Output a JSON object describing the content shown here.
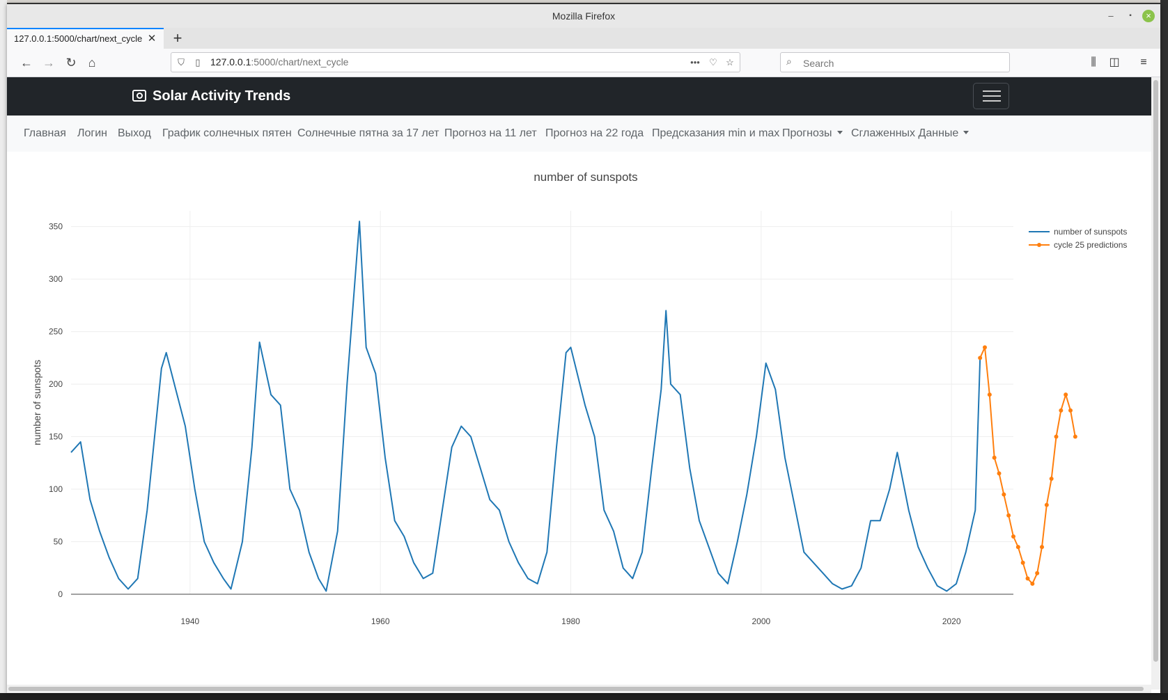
{
  "browser": {
    "window_title": "Mozilla Firefox",
    "tab_title": "127.0.0.1:5000/chart/next_cycle",
    "url_host": "127.0.0.1",
    "url_path": ":5000/chart/next_cycle",
    "search_placeholder": "Search"
  },
  "app": {
    "brand": "Solar Activity Trends",
    "menu": [
      {
        "label": "Главная"
      },
      {
        "label": "Логин"
      },
      {
        "label": "Выход"
      },
      {
        "label": "График солнечных пятен"
      },
      {
        "label": "Солнечные пятна за 17 лет"
      },
      {
        "label": "Прогноз на 11 лет"
      },
      {
        "label": "Прогноз на 22 года"
      },
      {
        "label": "Предсказания min и max"
      },
      {
        "label": "Прогнозы",
        "dropdown": true
      },
      {
        "label": "Сглаженных Данные",
        "dropdown": true
      }
    ]
  },
  "colors": {
    "navbar": "#212529",
    "series_history": "#1f77b4",
    "series_prediction": "#ff7f0e"
  },
  "chart_data": {
    "type": "line",
    "title": "number of sunspots",
    "xlabel": "",
    "ylabel": "number of sunspots",
    "xlim": [
      1927.5,
      2026.5
    ],
    "ylim": [
      0,
      365
    ],
    "xticks": [
      1940,
      1960,
      1980,
      2000,
      2020
    ],
    "yticks": [
      0,
      50,
      100,
      150,
      200,
      250,
      300,
      350
    ],
    "grid": true,
    "legend_position": "top-right",
    "series": [
      {
        "name": "number of sunspots",
        "color": "#1f77b4",
        "mode": "lines",
        "x": [
          1927.5,
          1928.5,
          1929.5,
          1930.5,
          1931.5,
          1932.5,
          1933.5,
          1934.5,
          1935.5,
          1936.5,
          1937.0,
          1937.5,
          1938.5,
          1939.5,
          1940.5,
          1941.5,
          1942.5,
          1943.5,
          1944.3,
          1945.5,
          1946.5,
          1947.3,
          1948.5,
          1949.5,
          1950.5,
          1951.5,
          1952.5,
          1953.5,
          1954.3,
          1955.5,
          1956.5,
          1957.8,
          1958.5,
          1959.5,
          1960.5,
          1961.5,
          1962.5,
          1963.5,
          1964.5,
          1965.5,
          1966.5,
          1967.5,
          1968.5,
          1969.5,
          1970.5,
          1971.5,
          1972.5,
          1973.5,
          1974.5,
          1975.5,
          1976.5,
          1977.5,
          1978.5,
          1979.5,
          1980.0,
          1981.5,
          1982.5,
          1983.5,
          1984.5,
          1985.5,
          1986.5,
          1987.5,
          1988.5,
          1989.5,
          1990.0,
          1990.5,
          1991.5,
          1992.5,
          1993.5,
          1994.5,
          1995.5,
          1996.5,
          1997.5,
          1998.5,
          1999.5,
          2000.5,
          2001.5,
          2002.5,
          2003.5,
          2004.5,
          2005.5,
          2006.5,
          2007.5,
          2008.5,
          2009.5,
          2010.5,
          2011.5,
          2012.5,
          2013.5,
          2014.3,
          2015.5,
          2016.5,
          2017.5,
          2018.5,
          2019.5,
          2020.5,
          2021.5,
          2022.5,
          2023.0
        ],
        "y": [
          135,
          145,
          90,
          60,
          35,
          15,
          5,
          15,
          80,
          170,
          215,
          230,
          195,
          160,
          100,
          50,
          30,
          15,
          5,
          50,
          140,
          240,
          190,
          180,
          100,
          80,
          40,
          15,
          3,
          60,
          200,
          355,
          235,
          210,
          130,
          70,
          55,
          30,
          15,
          20,
          80,
          140,
          160,
          150,
          120,
          90,
          80,
          50,
          30,
          15,
          10,
          40,
          140,
          230,
          235,
          180,
          150,
          80,
          60,
          25,
          15,
          40,
          120,
          195,
          270,
          200,
          190,
          120,
          70,
          45,
          20,
          10,
          50,
          95,
          150,
          220,
          195,
          130,
          85,
          40,
          30,
          20,
          10,
          5,
          8,
          25,
          70,
          70,
          100,
          135,
          80,
          45,
          25,
          8,
          3,
          10,
          40,
          80,
          225
        ]
      },
      {
        "name": "cycle 25 predictions",
        "color": "#ff7f0e",
        "mode": "lines+markers",
        "x": [
          2023.0,
          2023.5,
          2024.0,
          2024.5,
          2025.0,
          2025.5,
          2026.0,
          2026.5,
          2027.0,
          2027.5,
          2028.0,
          2028.5,
          2029.0,
          2029.5,
          2030.0,
          2030.5,
          2031.0,
          2031.5,
          2032.0,
          2032.5,
          2033.0
        ],
        "y": [
          225,
          235,
          190,
          130,
          115,
          95,
          75,
          55,
          45,
          30,
          15,
          10,
          20,
          45,
          85,
          110,
          150,
          175,
          190,
          175,
          150
        ]
      }
    ]
  }
}
